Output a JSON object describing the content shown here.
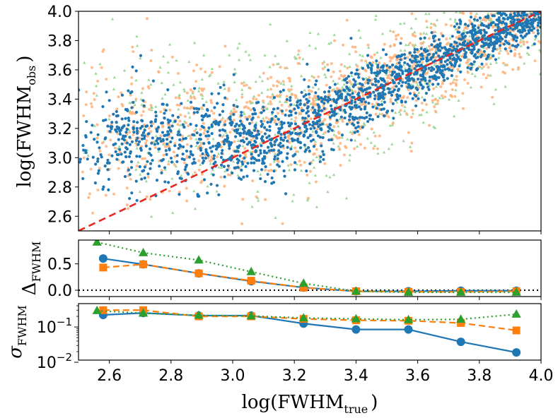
{
  "chart_data": [
    {
      "panel": "top",
      "type": "scatter",
      "title": "",
      "xlabel": "",
      "ylabel_main": "log(FWHM",
      "ylabel_sub": "obs",
      "ylabel_close": ")",
      "xlim": [
        2.5,
        4.0
      ],
      "ylim": [
        2.5,
        4.0
      ],
      "yticks": [
        "2.6",
        "2.8",
        "3.0",
        "3.2",
        "3.4",
        "3.6",
        "3.8",
        "4.0"
      ],
      "ytick_values": [
        2.6,
        2.8,
        3.0,
        3.2,
        3.4,
        3.6,
        3.8,
        4.0
      ],
      "reference_line": {
        "x": [
          2.5,
          4.0
        ],
        "y": [
          2.5,
          4.0
        ],
        "style": "dashed",
        "color": "#e8271f"
      },
      "series": [
        {
          "name": "blue",
          "marker": "circle",
          "color": "#1f77b4",
          "n_points": 1800,
          "seed": 11,
          "spread_low": 0.18,
          "spread_high": 0.07,
          "floor": 3.1
        },
        {
          "name": "orange",
          "marker": "circle",
          "color": "#ffb27a",
          "n_points": 1100,
          "seed": 23,
          "spread_low": 0.28,
          "spread_high": 0.14,
          "floor": 3.2
        },
        {
          "name": "green",
          "marker": "triangle",
          "color": "#8fd18a",
          "n_points": 700,
          "seed": 37,
          "spread_low": 0.35,
          "spread_high": 0.18,
          "floor": 3.25
        }
      ]
    },
    {
      "panel": "middle",
      "type": "line",
      "ylabel_main": "Δ",
      "ylabel_sub": "FWHM",
      "xlim": [
        2.5,
        4.0
      ],
      "ylim": [
        -0.12,
        0.95
      ],
      "yticks": [
        "0.0",
        "0.5"
      ],
      "ytick_values": [
        0.0,
        0.5
      ],
      "hline": {
        "y": 0.0,
        "style": "dotted",
        "color": "#000000"
      },
      "series": [
        {
          "name": "blue",
          "marker": "circle",
          "line": "solid",
          "color": "#1f77b4",
          "x": [
            2.58,
            2.71,
            2.89,
            3.06,
            3.23,
            3.4,
            3.57,
            3.74,
            3.92
          ],
          "y": [
            0.6,
            0.49,
            0.32,
            0.17,
            0.05,
            -0.02,
            -0.02,
            -0.01,
            -0.01
          ]
        },
        {
          "name": "orange",
          "marker": "square",
          "line": "dashed",
          "color": "#ff7f0e",
          "x": [
            2.58,
            2.71,
            2.89,
            3.06,
            3.23,
            3.4,
            3.57,
            3.74,
            3.92
          ],
          "y": [
            0.43,
            0.49,
            0.32,
            0.18,
            0.05,
            -0.02,
            -0.03,
            -0.03,
            -0.02
          ]
        },
        {
          "name": "green",
          "marker": "triangle",
          "line": "dotted",
          "color": "#2ca02c",
          "x": [
            2.56,
            2.71,
            2.89,
            3.06,
            3.23,
            3.4,
            3.57,
            3.74,
            3.92
          ],
          "y": [
            0.91,
            0.71,
            0.57,
            0.35,
            0.13,
            -0.02,
            -0.04,
            -0.04,
            -0.04
          ]
        }
      ]
    },
    {
      "panel": "bottom",
      "type": "line",
      "yscale": "log",
      "ylabel_main": "σ",
      "ylabel_sub": "FWHM",
      "xlabel_main": "log(FWHM",
      "xlabel_sub": "true",
      "xlabel_close": ")",
      "xlim": [
        2.5,
        4.0
      ],
      "xticks": [
        "2.6",
        "2.8",
        "3.0",
        "3.2",
        "3.4",
        "3.6",
        "3.8",
        "4.0"
      ],
      "xtick_values": [
        2.6,
        2.8,
        3.0,
        3.2,
        3.4,
        3.6,
        3.8,
        4.0
      ],
      "ylim": [
        0.0115,
        0.46
      ],
      "yticks_base": [
        "10",
        "10"
      ],
      "yticks_exp": [
        "−1",
        "−2"
      ],
      "ytick_values": [
        0.1,
        0.01
      ],
      "series": [
        {
          "name": "blue",
          "marker": "circle",
          "line": "solid",
          "color": "#1f77b4",
          "x": [
            2.58,
            2.71,
            2.89,
            3.06,
            3.23,
            3.4,
            3.57,
            3.74,
            3.92
          ],
          "y": [
            0.22,
            0.25,
            0.21,
            0.21,
            0.125,
            0.085,
            0.085,
            0.038,
            0.019
          ]
        },
        {
          "name": "orange",
          "marker": "square",
          "line": "dashed",
          "color": "#ff7f0e",
          "x": [
            2.58,
            2.71,
            2.89,
            3.06,
            3.23,
            3.4,
            3.57,
            3.74,
            3.92
          ],
          "y": [
            0.3,
            0.3,
            0.2,
            0.2,
            0.17,
            0.155,
            0.15,
            0.13,
            0.08
          ]
        },
        {
          "name": "green",
          "marker": "triangle",
          "line": "dotted",
          "color": "#2ca02c",
          "x": [
            2.56,
            2.71,
            2.89,
            3.06,
            3.23,
            3.4,
            3.57,
            3.74,
            3.92
          ],
          "y": [
            0.29,
            0.245,
            0.215,
            0.205,
            0.18,
            0.17,
            0.16,
            0.165,
            0.23
          ]
        }
      ]
    }
  ]
}
